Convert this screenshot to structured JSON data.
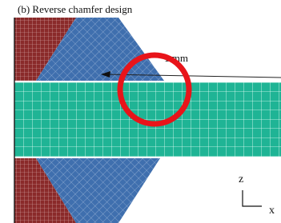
{
  "caption": "(b) Reverse chamfer design",
  "annotations": {
    "dimension": "1 mm",
    "axis_z": "z",
    "axis_x": "x"
  }
}
